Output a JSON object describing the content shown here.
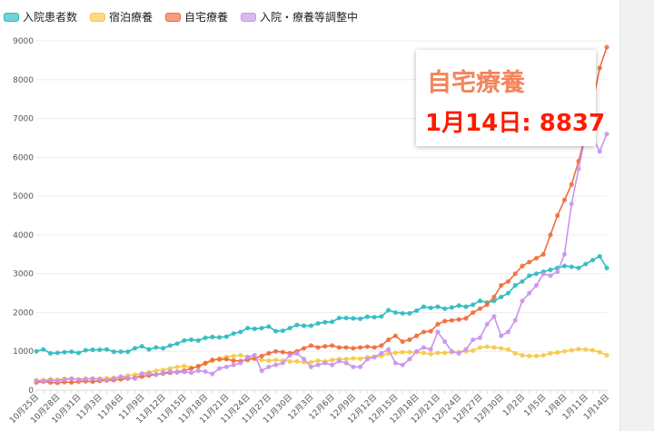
{
  "chart_data": {
    "type": "line",
    "ylim": [
      0,
      9000
    ],
    "yticks": [
      0,
      1000,
      2000,
      3000,
      4000,
      5000,
      6000,
      7000,
      8000,
      9000
    ],
    "grid": true,
    "legend_placement": "top-left",
    "categories": [
      "10月25日",
      "10月26日",
      "10月27日",
      "10月28日",
      "10月29日",
      "10月30日",
      "10月31日",
      "11月1日",
      "11月2日",
      "11月3日",
      "11月4日",
      "11月5日",
      "11月6日",
      "11月7日",
      "11月8日",
      "11月9日",
      "11月10日",
      "11月11日",
      "11月12日",
      "11月13日",
      "11月14日",
      "11月15日",
      "11月16日",
      "11月17日",
      "11月18日",
      "11月19日",
      "11月20日",
      "11月21日",
      "11月22日",
      "11月23日",
      "11月24日",
      "11月25日",
      "11月26日",
      "11月27日",
      "11月28日",
      "11月29日",
      "11月30日",
      "12月1日",
      "12月2日",
      "12月3日",
      "12月4日",
      "12月5日",
      "12月6日",
      "12月7日",
      "12月8日",
      "12月9日",
      "12月10日",
      "12月11日",
      "12月12日",
      "12月13日",
      "12月14日",
      "12月15日",
      "12月16日",
      "12月17日",
      "12月18日",
      "12月19日",
      "12月20日",
      "12月21日",
      "12月22日",
      "12月23日",
      "12月24日",
      "12月25日",
      "12月26日",
      "12月27日",
      "12月28日",
      "12月29日",
      "12月30日",
      "12月31日",
      "1月1日",
      "1月2日",
      "1月3日",
      "1月4日",
      "1月5日",
      "1月6日",
      "1月7日",
      "1月8日",
      "1月9日",
      "1月10日",
      "1月11日",
      "1月12日",
      "1月13日",
      "1月14日"
    ],
    "series": [
      {
        "name": "入院患者数",
        "color": "#2bbbc0",
        "values": [
          1000,
          1050,
          950,
          960,
          980,
          990,
          960,
          1030,
          1040,
          1040,
          1050,
          990,
          990,
          990,
          1080,
          1130,
          1050,
          1100,
          1080,
          1150,
          1200,
          1280,
          1300,
          1280,
          1350,
          1370,
          1360,
          1380,
          1460,
          1500,
          1600,
          1580,
          1600,
          1640,
          1520,
          1530,
          1600,
          1680,
          1660,
          1660,
          1720,
          1750,
          1760,
          1860,
          1860,
          1850,
          1840,
          1890,
          1880,
          1900,
          2060,
          2000,
          1980,
          1980,
          2050,
          2150,
          2120,
          2150,
          2100,
          2130,
          2180,
          2150,
          2200,
          2300,
          2260,
          2300,
          2400,
          2500,
          2700,
          2800,
          2950,
          3000,
          3050,
          3100,
          3150,
          3200,
          3180,
          3150,
          3250,
          3350,
          3450,
          3150
        ]
      },
      {
        "name": "宿泊療養",
        "color": "#f7c948",
        "values": [
          250,
          260,
          280,
          270,
          300,
          290,
          280,
          300,
          290,
          300,
          310,
          320,
          330,
          380,
          400,
          430,
          460,
          500,
          520,
          560,
          600,
          620,
          580,
          600,
          680,
          750,
          820,
          860,
          880,
          900,
          860,
          800,
          780,
          760,
          780,
          760,
          740,
          740,
          720,
          720,
          760,
          740,
          780,
          800,
          800,
          820,
          810,
          850,
          860,
          880,
          950,
          960,
          980,
          980,
          980,
          960,
          930,
          960,
          960,
          980,
          980,
          1000,
          1020,
          1100,
          1120,
          1100,
          1080,
          1050,
          950,
          900,
          880,
          880,
          900,
          950,
          970,
          1000,
          1030,
          1060,
          1050,
          1030,
          980,
          900
        ]
      },
      {
        "name": "自宅療養",
        "color": "#f26b3a",
        "values": [
          200,
          220,
          200,
          190,
          210,
          200,
          220,
          230,
          220,
          240,
          250,
          260,
          280,
          300,
          320,
          350,
          380,
          400,
          430,
          450,
          470,
          500,
          560,
          620,
          700,
          780,
          790,
          800,
          760,
          750,
          780,
          820,
          880,
          950,
          1000,
          980,
          950,
          1000,
          1080,
          1150,
          1100,
          1130,
          1150,
          1100,
          1100,
          1080,
          1100,
          1120,
          1100,
          1150,
          1300,
          1400,
          1250,
          1300,
          1400,
          1500,
          1520,
          1700,
          1780,
          1800,
          1820,
          1850,
          2000,
          2100,
          2200,
          2400,
          2700,
          2800,
          3000,
          3200,
          3300,
          3400,
          3500,
          4000,
          4500,
          4900,
          5300,
          5900,
          6600,
          7400,
          8300,
          8837
        ]
      },
      {
        "name": "入院・療養等調整中",
        "color": "#c993ee",
        "values": [
          250,
          230,
          260,
          240,
          270,
          300,
          270,
          280,
          300,
          280,
          260,
          300,
          350,
          320,
          300,
          420,
          430,
          400,
          450,
          480,
          460,
          470,
          450,
          500,
          480,
          420,
          560,
          600,
          650,
          700,
          850,
          900,
          500,
          600,
          650,
          700,
          900,
          950,
          800,
          600,
          650,
          700,
          650,
          750,
          700,
          600,
          600,
          800,
          850,
          950,
          1050,
          700,
          650,
          800,
          1000,
          1100,
          1050,
          1500,
          1250,
          1000,
          950,
          1050,
          1300,
          1350,
          1700,
          1900,
          1400,
          1500,
          1800,
          2300,
          2500,
          2700,
          3000,
          2950,
          3050,
          3500,
          4800,
          5700,
          6600,
          6500,
          6150,
          6600
        ]
      }
    ]
  },
  "tooltip": {
    "series": "自宅療養",
    "label": "1月14日: 8837",
    "color": "#f4845c"
  }
}
